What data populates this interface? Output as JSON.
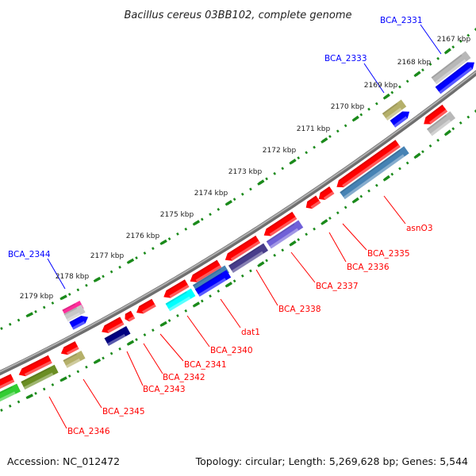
{
  "title": "Bacillus cereus 03BB102, complete genome",
  "footer": {
    "accession": "Accession: NC_012472",
    "summary": "Topology: circular; Length: 5,269,628 bp; Genes: 5,544"
  },
  "ticks": [
    "2167 kbp",
    "2168 kbp",
    "2169 kbp",
    "2170 kbp",
    "2171 kbp",
    "2172 kbp",
    "2173 kbp",
    "2174 kbp",
    "2175 kbp",
    "2176 kbp",
    "2177 kbp",
    "2178 kbp",
    "2179 kbp"
  ],
  "forward_labels": [
    "BCA_2331",
    "BCA_2333",
    "BCA_2344"
  ],
  "reverse_labels": [
    "asnO3",
    "BCA_2335",
    "BCA_2336",
    "BCA_2337",
    "BCA_2338",
    "dat1",
    "BCA_2340",
    "BCA_2341",
    "BCA_2342",
    "BCA_2343",
    "BCA_2345",
    "BCA_2346"
  ],
  "colors": {
    "forward_label": "#0000ff",
    "reverse_label": "#ff0000",
    "backbone": "#808080",
    "ticks": "#1a8a1a"
  }
}
